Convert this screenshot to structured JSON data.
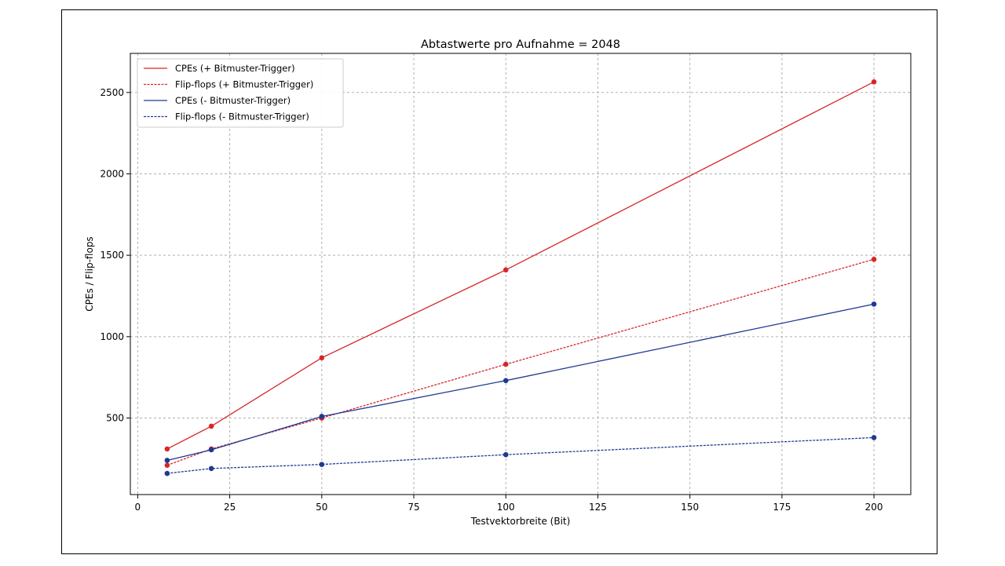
{
  "chart_data": {
    "type": "line",
    "title": "Abtastwerte pro Aufnahme = 2048",
    "xlabel": "Testvektorbreite (Bit)",
    "ylabel": "CPEs / Flip-flops",
    "xlim": [
      -2,
      210
    ],
    "ylim": [
      30,
      2740
    ],
    "xticks": [
      0,
      25,
      50,
      75,
      100,
      125,
      150,
      175,
      200
    ],
    "yticks": [
      500,
      1000,
      1500,
      2000,
      2500
    ],
    "grid": true,
    "legend_position": "top-left",
    "x": [
      8,
      20,
      50,
      100,
      200
    ],
    "series": [
      {
        "name": "CPEs (+ Bitmuster-Trigger)",
        "values": [
          310,
          450,
          870,
          1410,
          2565
        ],
        "color": "#d62728",
        "dash": "solid"
      },
      {
        "name": "Flip-flops (+ Bitmuster-Trigger)",
        "values": [
          210,
          310,
          500,
          830,
          1475
        ],
        "color": "#d62728",
        "dash": "dashed"
      },
      {
        "name": "CPEs (- Bitmuster-Trigger)",
        "values": [
          240,
          305,
          510,
          730,
          1200
        ],
        "color": "#1f3a93",
        "dash": "solid"
      },
      {
        "name": "Flip-flops (- Bitmuster-Trigger)",
        "values": [
          160,
          190,
          215,
          275,
          380
        ],
        "color": "#1f3a93",
        "dash": "dashed"
      }
    ]
  }
}
